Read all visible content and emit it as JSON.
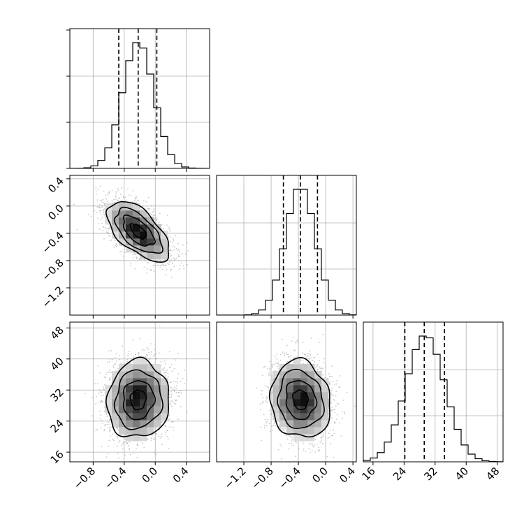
{
  "chart_data": {
    "type": "corner",
    "parameters": [
      {
        "xlim": [
          -1.1,
          0.7
        ],
        "ticks": [
          -0.8,
          -0.4,
          0.0,
          0.4
        ],
        "tick_labels": [
          "−0.8",
          "−0.4",
          "0.0",
          "0.4"
        ],
        "mean": -0.22,
        "sd": 0.2,
        "quantiles": [
          -0.47,
          -0.22,
          0.02
        ]
      },
      {
        "xlim": [
          -1.6,
          0.45
        ],
        "ticks": [
          -1.2,
          -0.8,
          -0.4,
          0.0,
          0.4
        ],
        "tick_labels": [
          "−1.2",
          "−0.8",
          "−0.4",
          "0.0",
          "0.4"
        ],
        "mean": -0.37,
        "sd": 0.22,
        "quantiles": [
          -0.62,
          -0.37,
          -0.12
        ]
      },
      {
        "xlim": [
          13.5,
          49.5
        ],
        "ticks": [
          16,
          24,
          32,
          40,
          48
        ],
        "tick_labels": [
          "16",
          "24",
          "32",
          "40",
          "48"
        ],
        "mean": 29.5,
        "sd": 5.0,
        "quantiles": [
          24.2,
          29.2,
          34.4
        ]
      }
    ],
    "correlations": {
      "0-1": -0.6,
      "0-2": 0.05,
      "1-2": -0.1
    },
    "histogram_bins": 20,
    "contour_levels": [
      0.5,
      1.0,
      1.5,
      2.0
    ],
    "quantile_lines": "dashed",
    "grid": true
  }
}
